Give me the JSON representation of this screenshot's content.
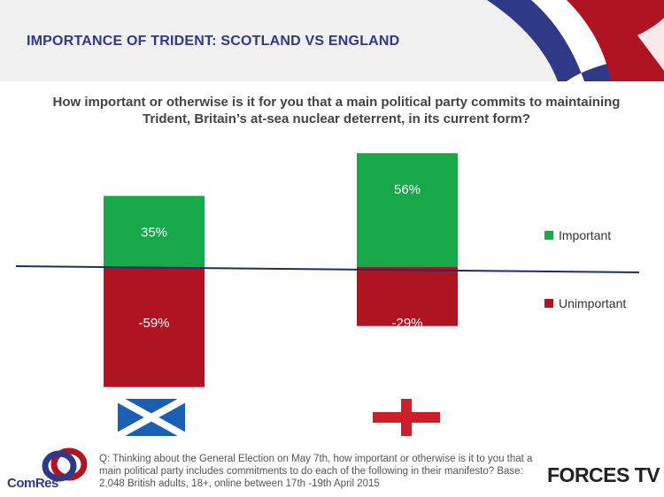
{
  "slide_title": "IMPORTANCE OF TRIDENT: SCOTLAND VS ENGLAND",
  "question": "How important or otherwise is it for you that a main political party commits to maintaining Trident, Britain’s at-sea nuclear deterrent, in its current form?",
  "colors": {
    "title": "#2e3a87",
    "important": "#17a84a",
    "unimportant": "#b01423",
    "axis": "#1f2f66"
  },
  "chart_data": {
    "type": "bar",
    "categories": [
      "Scotland",
      "England"
    ],
    "series": [
      {
        "name": "Important",
        "values": [
          35,
          56
        ],
        "labels": [
          "35%",
          "56%"
        ],
        "color": "#17a84a"
      },
      {
        "name": "Unimportant",
        "values": [
          -59,
          -29
        ],
        "labels": [
          "-59%",
          "-29%"
        ],
        "color": "#b01423"
      }
    ],
    "title": "",
    "xlabel": "",
    "ylabel": "",
    "legend": "right"
  },
  "flags": [
    "scotland-flag",
    "england-flag"
  ],
  "footnote": "Q: Thinking about the General Election on May 7th, how important or otherwise is it to you that a main political party includes commitments to do each of the following in their manifesto? Base: 2,048 British adults, 18+, online between 17th -19th April 2015",
  "logos": {
    "comres": "ComRes",
    "forces": "FORCES TV"
  }
}
